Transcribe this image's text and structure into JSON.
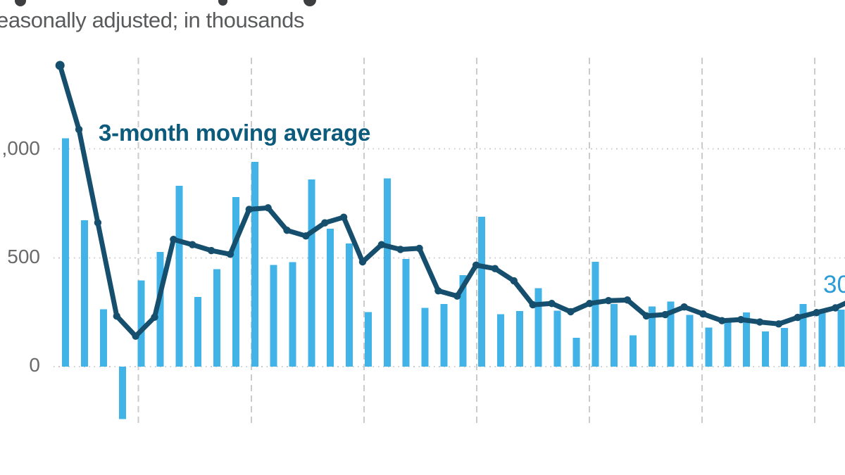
{
  "header": {
    "subtitle": "easonally adjusted; in thousands"
  },
  "annotations": {
    "moving_average_label": "3-month moving average",
    "end_value_label": "30"
  },
  "colors": {
    "bar": "#41b3e6",
    "line": "#164f6d",
    "moving_average_label": "#0c5a7c",
    "end_value_label": "#2b9cd8",
    "subtitle_text": "#595a5c",
    "axis_tick_text": "#696a6c",
    "gridline": "#c9cbcd",
    "title_fragment": "#3d3e40",
    "background": "#ffffff"
  },
  "chart_data": {
    "type": "bar+line",
    "line_series_name": "3-month moving average",
    "units": "thousands",
    "bars": [
      1048,
      672,
      264,
      -240,
      396,
      526,
      831,
      320,
      448,
      779,
      940,
      467,
      480,
      860,
      633,
      566,
      251,
      865,
      494,
      270,
      288,
      420,
      688,
      241,
      255,
      360,
      257,
      133,
      481,
      288,
      144,
      277,
      299,
      238,
      180,
      204,
      248,
      162,
      178,
      287,
      259,
      262
    ],
    "line": [
      1383,
      1089,
      661,
      232,
      140,
      227,
      584,
      560,
      533,
      516,
      722,
      729,
      626,
      600,
      660,
      686,
      481,
      560,
      538,
      543,
      348,
      324,
      466,
      450,
      394,
      284,
      290,
      252,
      290,
      303,
      306,
      233,
      239,
      274,
      242,
      211,
      216,
      205,
      196,
      226,
      248,
      270
    ],
    "line_exit_value": 310,
    "y_axis": {
      "tick_labels": [
        ",000",
        "500",
        "0"
      ],
      "tick_values": [
        1000,
        500,
        0
      ],
      "ylim": [
        -260,
        1450
      ]
    },
    "grid": {
      "horizontal_style": "dotted",
      "vertical_style": "dashed",
      "vertical_interval_bars": 6
    }
  }
}
